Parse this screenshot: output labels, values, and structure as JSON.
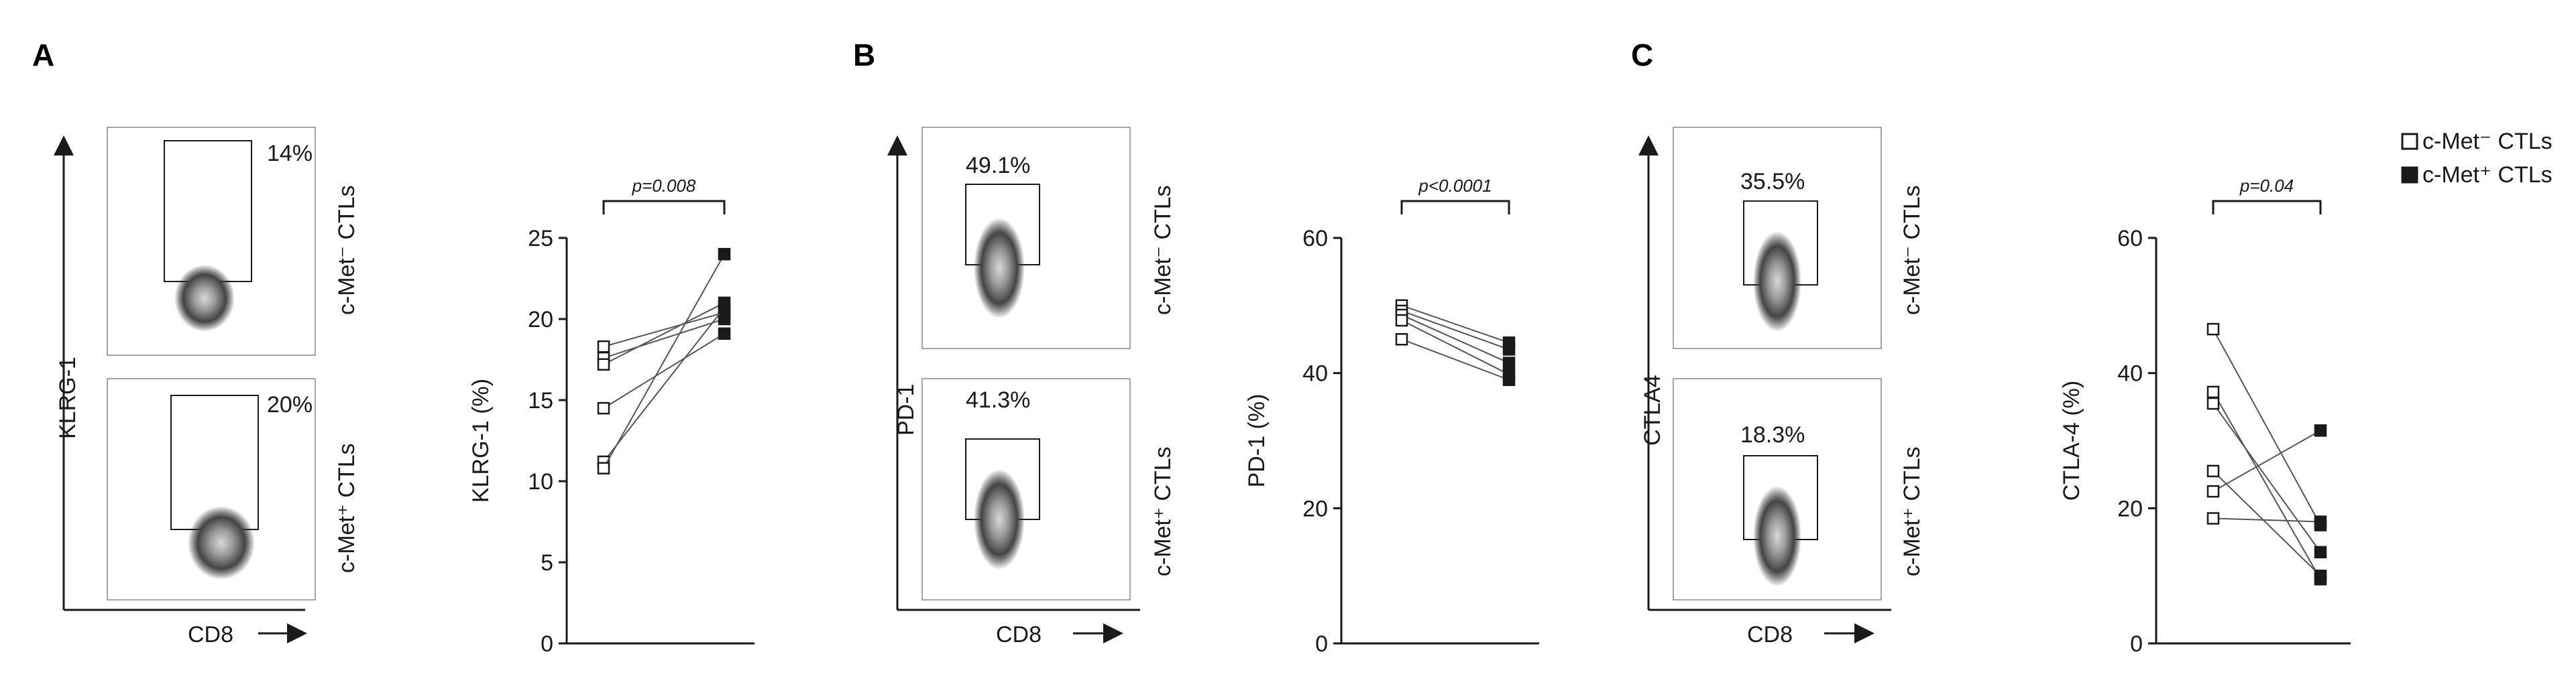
{
  "panels": [
    {
      "letter": "A",
      "flow": {
        "ylabel": "KLRG-1",
        "xlabel": "CD8",
        "top": {
          "percent": "14%",
          "group": "c-Met⁻ CTLs"
        },
        "bottom": {
          "percent": "20%",
          "group": "c-Met⁺ CTLs"
        }
      }
    },
    {
      "letter": "B",
      "flow": {
        "ylabel": "PD-1",
        "xlabel": "CD8",
        "top": {
          "percent": "49.1%",
          "group": "c-Met⁻ CTLs"
        },
        "bottom": {
          "percent": "41.3%",
          "group": "c-Met⁺ CTLs"
        }
      }
    },
    {
      "letter": "C",
      "flow": {
        "ylabel": "CTLA4",
        "xlabel": "CD8",
        "top": {
          "percent": "35.5%",
          "group": "c-Met⁻ CTLs"
        },
        "bottom": {
          "percent": "18.3%",
          "group": "c-Met⁺ CTLs"
        }
      }
    }
  ],
  "legend": {
    "items": [
      {
        "label": "c-Met⁻ CTLs",
        "marker": "open-square"
      },
      {
        "label": "c-Met⁺ CTLs",
        "marker": "filled-square"
      }
    ]
  },
  "colors": {
    "ink": "#1a1a1a",
    "flow_density": "#555555"
  },
  "chart_data": [
    {
      "type": "scatter",
      "ylabel": "KLRG-1 (%)",
      "ylim": [
        0,
        25
      ],
      "yticks": [
        0,
        5,
        10,
        15,
        20,
        25
      ],
      "pvalue": "p=0.008",
      "categories": [
        "c-Met⁻ CTLs",
        "c-Met⁺ CTLs"
      ],
      "pairs": [
        [
          18.3,
          20.4
        ],
        [
          17.6,
          20.0
        ],
        [
          17.2,
          21.0
        ],
        [
          14.5,
          19.1
        ],
        [
          11.2,
          20.7
        ],
        [
          10.8,
          24.0
        ]
      ]
    },
    {
      "type": "scatter",
      "ylabel": "PD-1 (%)",
      "ylim": [
        0,
        60
      ],
      "yticks": [
        0,
        20,
        40,
        60
      ],
      "pvalue": "p<0.0001",
      "categories": [
        "c-Met⁻ CTLs",
        "c-Met⁺ CTLs"
      ],
      "pairs": [
        [
          50.0,
          44.5
        ],
        [
          49.2,
          43.5
        ],
        [
          48.6,
          41.5
        ],
        [
          47.8,
          39.8
        ],
        [
          45.0,
          39.0
        ]
      ]
    },
    {
      "type": "scatter",
      "ylabel": "CTLA-4 (%)",
      "ylim": [
        0,
        60
      ],
      "yticks": [
        0,
        20,
        40,
        60
      ],
      "pvalue": "p=0.04",
      "categories": [
        "c-Met⁻ CTLs",
        "c-Met⁺ CTLs"
      ],
      "pairs": [
        [
          46.5,
          17.5
        ],
        [
          37.2,
          9.5
        ],
        [
          35.5,
          13.5
        ],
        [
          25.5,
          10.0
        ],
        [
          22.5,
          31.5
        ],
        [
          18.5,
          18.0
        ]
      ]
    }
  ]
}
